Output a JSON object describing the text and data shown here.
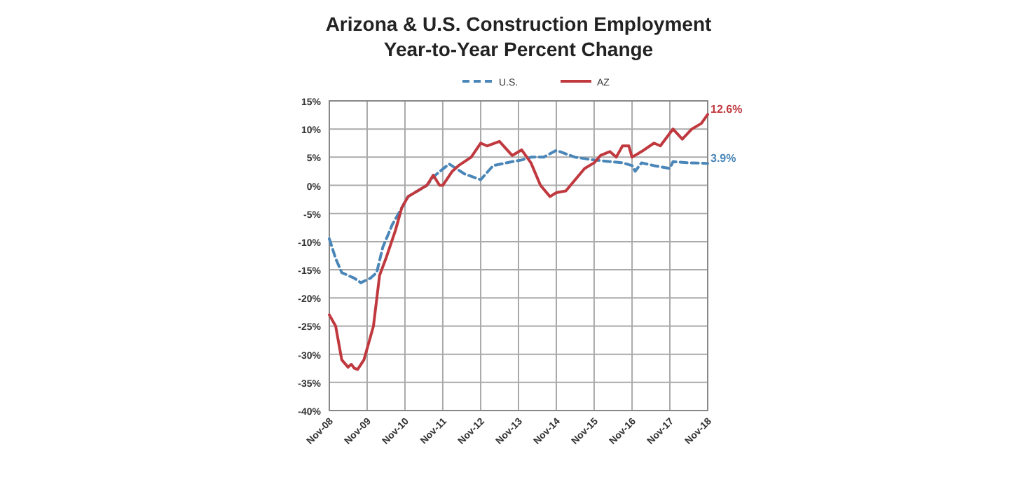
{
  "chart_data": {
    "type": "line",
    "title": "Arizona & U.S. Construction Employment",
    "subtitle": "Year-to-Year Percent Change",
    "legend": "top",
    "grid": true,
    "xlim": [
      "2008-11",
      "2018-11"
    ],
    "xticks": [
      {
        "value": "2008-11",
        "label": "Nov-08"
      },
      {
        "value": "2009-11",
        "label": "Nov-09"
      },
      {
        "value": "2010-11",
        "label": "Nov-10"
      },
      {
        "value": "2011-11",
        "label": "Nov-11"
      },
      {
        "value": "2012-11",
        "label": "Nov-12"
      },
      {
        "value": "2013-11",
        "label": "Nov-13"
      },
      {
        "value": "2014-11",
        "label": "Nov-14"
      },
      {
        "value": "2015-11",
        "label": "Nov-15"
      },
      {
        "value": "2016-11",
        "label": "Nov-16"
      },
      {
        "value": "2017-11",
        "label": "Nov-17"
      },
      {
        "value": "2018-11",
        "label": "Nov-18"
      }
    ],
    "ylim": [
      -40,
      15
    ],
    "yticks": [
      {
        "value": -40,
        "label": "-40%"
      },
      {
        "value": -35,
        "label": "-35%"
      },
      {
        "value": -30,
        "label": "-30%"
      },
      {
        "value": -25,
        "label": "-25%"
      },
      {
        "value": -20,
        "label": "-20%"
      },
      {
        "value": -15,
        "label": "-15%"
      },
      {
        "value": -10,
        "label": "-10%"
      },
      {
        "value": -5,
        "label": "-5%"
      },
      {
        "value": 0,
        "label": "0%"
      },
      {
        "value": 5,
        "label": "5%"
      },
      {
        "value": 10,
        "label": "10%"
      },
      {
        "value": 15,
        "label": "15%"
      }
    ],
    "annotations": [
      {
        "text": "12.6%",
        "x": "2018-11",
        "y": 12.6
      },
      {
        "text": "3.9%",
        "x": "2018-11",
        "y": 3.9
      }
    ],
    "series": [
      {
        "name": "U.S.",
        "color": "#4a86b8",
        "line_style": "dashed",
        "x": [
          "2008-11",
          "2009-01",
          "2009-03",
          "2009-07",
          "2009-09",
          "2009-12",
          "2010-02",
          "2010-04",
          "2010-07",
          "2010-10",
          "2010-12",
          "2011-06",
          "2011-08",
          "2012-01",
          "2012-06",
          "2012-11",
          "2013-03",
          "2013-09",
          "2013-12",
          "2014-03",
          "2014-07",
          "2014-11",
          "2015-05",
          "2015-11",
          "2016-08",
          "2016-11",
          "2016-12",
          "2017-02",
          "2017-06",
          "2017-11",
          "2017-12",
          "2018-05",
          "2018-11"
        ],
        "values": [
          -9.5,
          -13,
          -15.5,
          -16.5,
          -17.3,
          -16.5,
          -15.5,
          -11,
          -7,
          -4,
          -2,
          0,
          1.5,
          3.8,
          2,
          1,
          3.5,
          4.2,
          4.5,
          5,
          5,
          6.2,
          5,
          4.5,
          4,
          3.5,
          2.5,
          4,
          3.5,
          3,
          4.2,
          4,
          3.9
        ]
      },
      {
        "name": "AZ",
        "color": "#c0393f",
        "line_style": "solid",
        "x": [
          "2008-11",
          "2009-01",
          "2009-03",
          "2009-05",
          "2009-06",
          "2009-07",
          "2009-08",
          "2009-10",
          "2010-01",
          "2010-03",
          "2010-05",
          "2010-08",
          "2010-10",
          "2010-12",
          "2011-06",
          "2011-08",
          "2011-10",
          "2011-11",
          "2012-02",
          "2012-04",
          "2012-08",
          "2012-11",
          "2013-01",
          "2013-05",
          "2013-09",
          "2013-12",
          "2014-03",
          "2014-06",
          "2014-09",
          "2014-11",
          "2015-02",
          "2015-08",
          "2015-11",
          "2016-01",
          "2016-04",
          "2016-06",
          "2016-08",
          "2016-10",
          "2016-11",
          "2017-02",
          "2017-06",
          "2017-08",
          "2017-12",
          "2018-03",
          "2018-06",
          "2018-09",
          "2018-11"
        ],
        "values": [
          -23,
          -25,
          -31,
          -32.3,
          -31.8,
          -32.5,
          -32.7,
          -31,
          -25,
          -16,
          -13,
          -8,
          -4,
          -2,
          0,
          1.8,
          0,
          0,
          2.5,
          3.5,
          5,
          7.5,
          7,
          7.8,
          5.3,
          6.3,
          4,
          0,
          -2,
          -1.3,
          -1,
          3,
          4,
          5.3,
          6,
          5,
          7,
          7,
          5,
          6,
          7.5,
          7,
          10,
          8.2,
          10,
          11,
          12.6
        ]
      }
    ]
  }
}
